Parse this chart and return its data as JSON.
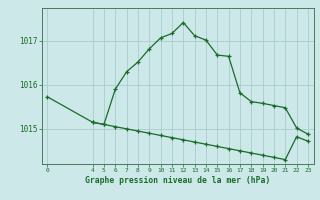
{
  "xlabel": "Graphe pression niveau de la mer (hPa)",
  "background_color": "#cce8e8",
  "grid_color": "#aacccc",
  "line_color": "#1a6b2a",
  "series1_x": [
    0,
    4,
    5,
    6,
    7,
    8,
    9,
    10,
    11,
    12,
    13,
    14,
    15,
    16,
    17,
    18,
    19,
    20,
    21,
    22,
    23
  ],
  "series1_y": [
    1015.73,
    1015.15,
    1015.1,
    1015.9,
    1016.3,
    1016.52,
    1016.82,
    1017.07,
    1017.17,
    1017.42,
    1017.12,
    1017.02,
    1016.68,
    1016.65,
    1015.82,
    1015.62,
    1015.58,
    1015.53,
    1015.48,
    1015.02,
    1014.88
  ],
  "series2_x": [
    4,
    5,
    6,
    7,
    8,
    9,
    10,
    11,
    12,
    13,
    14,
    15,
    16,
    17,
    18,
    19,
    20,
    21,
    22,
    23
  ],
  "series2_y": [
    1015.15,
    1015.1,
    1015.05,
    1015.0,
    1014.95,
    1014.9,
    1014.85,
    1014.8,
    1014.75,
    1014.7,
    1014.65,
    1014.6,
    1014.55,
    1014.5,
    1014.45,
    1014.4,
    1014.35,
    1014.3,
    1014.82,
    1014.72
  ],
  "yticks": [
    1015,
    1016,
    1017
  ],
  "xticks": [
    0,
    4,
    5,
    6,
    7,
    8,
    9,
    10,
    11,
    12,
    13,
    14,
    15,
    16,
    17,
    18,
    19,
    20,
    21,
    22,
    23
  ],
  "ylim": [
    1014.2,
    1017.75
  ],
  "xlim": [
    -0.5,
    23.5
  ]
}
